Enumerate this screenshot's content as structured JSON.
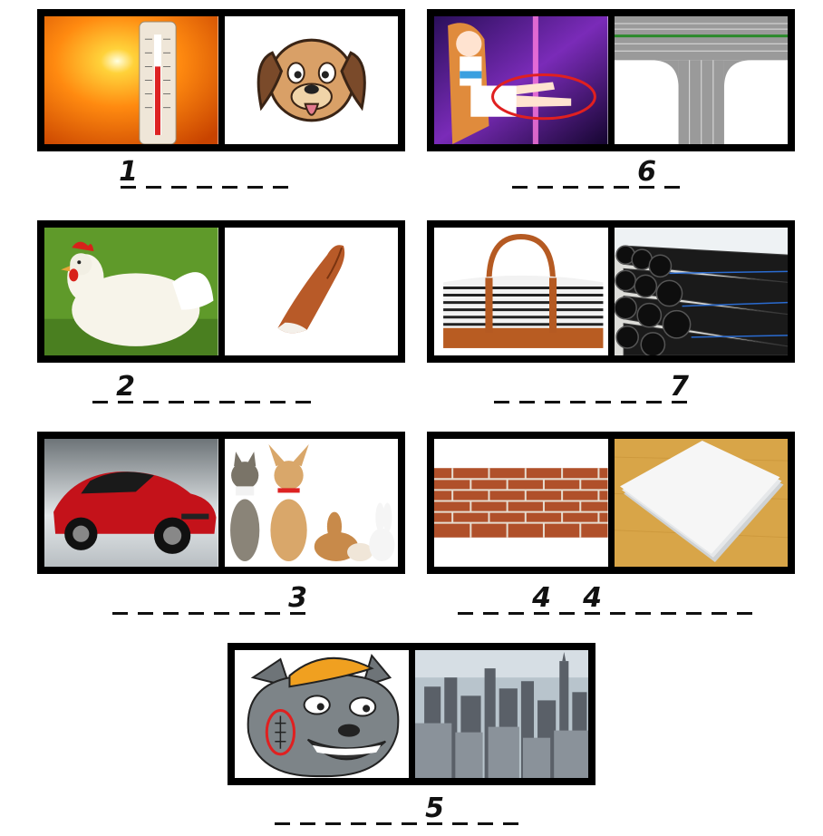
{
  "puzzles": [
    {
      "id": "1",
      "pictures": [
        "thermometer-sun",
        "cartoon-dog"
      ],
      "slots": [
        "1",
        "",
        "",
        "",
        "",
        "",
        ""
      ]
    },
    {
      "id": "6",
      "pictures": [
        "anime-girl-legs",
        "t-junction-road"
      ],
      "slots": [
        "",
        "",
        "",
        "",
        "",
        "6",
        ""
      ]
    },
    {
      "id": "2",
      "pictures": [
        "white-hen",
        "fox-tail"
      ],
      "slots": [
        "",
        "2",
        "",
        "",
        "",
        "",
        "",
        "",
        ""
      ]
    },
    {
      "id": "7",
      "pictures": [
        "striped-duffel-bag",
        "black-pipes"
      ],
      "slots": [
        "",
        "",
        "",
        "",
        "",
        "",
        "",
        "7"
      ]
    },
    {
      "id": "3",
      "pictures": [
        "red-sports-car",
        "pets-group"
      ],
      "slots": [
        "",
        "",
        "",
        "",
        "",
        "",
        "",
        "3"
      ]
    },
    {
      "id": "4",
      "pictures": [
        "brick-wall",
        "paper-stack"
      ],
      "slots": [
        "",
        "",
        "",
        "4",
        "",
        "4",
        "",
        "",
        "",
        "",
        "",
        "",
        "",
        ""
      ]
    },
    {
      "id": "5",
      "pictures": [
        "grey-wolf-cartoon",
        "city-skyline"
      ],
      "slots": [
        "",
        "",
        "",
        "",
        "",
        "",
        "5",
        "",
        "",
        ""
      ]
    }
  ]
}
